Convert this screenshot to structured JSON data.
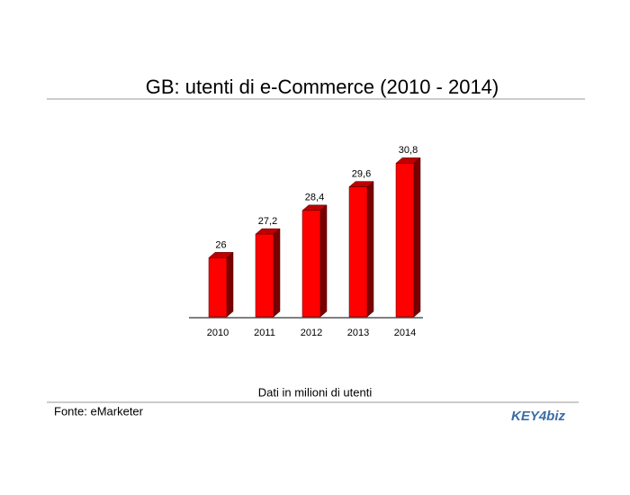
{
  "chart_data": {
    "type": "bar3d",
    "title": "GB: utenti di e-Commerce (2010 - 2014)",
    "categories": [
      "2010",
      "2011",
      "2012",
      "2013",
      "2014"
    ],
    "values": [
      26,
      27.2,
      28.4,
      29.6,
      30.8
    ],
    "value_labels": [
      "26",
      "27,2",
      "28,4",
      "29,6",
      "30,8"
    ],
    "color": "#ff0000",
    "ylim": [
      23,
      31.5
    ],
    "note": "Dati in milioni di utenti",
    "source": "Fonte: eMarketer",
    "logo": "KEY4biz"
  }
}
